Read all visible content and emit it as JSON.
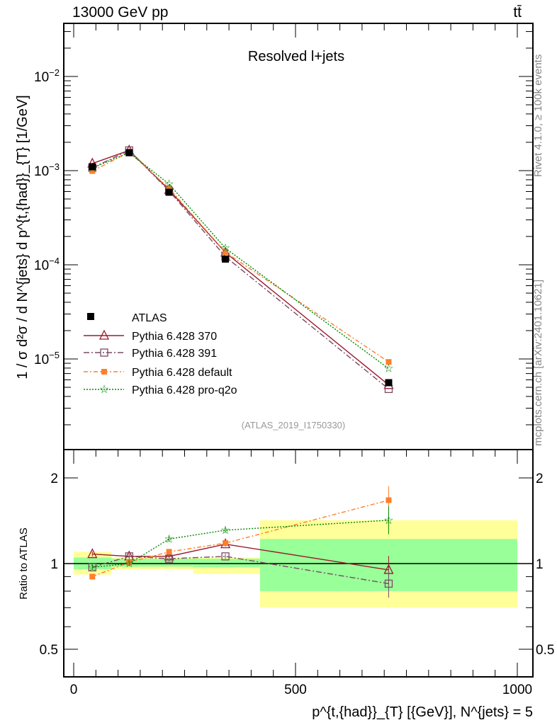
{
  "header": {
    "beam": "13000 GeV pp",
    "process": "tt̄"
  },
  "side": {
    "rivet": "Rivet 4.1.0, ≥ 100k events",
    "source": "mcplots.cern.ch [arXiv:2401.10621]"
  },
  "chart_data": [
    {
      "type": "line",
      "title": "Resolved l+jets",
      "analysis": "(ATLAS_2019_I1750330)",
      "ylabel": "1 / σ d²σ / d N^{jets} d p^{t,{had}}_{T} [1/GeV]",
      "yscale": "log",
      "ylim": [
        3.6e-06,
        0.036
      ],
      "yticks": [
        "10^-2",
        "10^-3",
        "10^-4",
        "10^-5"
      ],
      "x": [
        42,
        125,
        215,
        342,
        710
      ],
      "data": {
        "name": "ATLAS",
        "values": [
          0.0011,
          0.00155,
          0.00059,
          0.000115,
          5.6e-06
        ]
      },
      "series": [
        {
          "name": "Pythia 6.428 370",
          "color": "#9c1a2e",
          "marker": "open-triangle",
          "dash": "",
          "values": [
            0.00119,
            0.00164,
            0.000625,
            0.000135,
            5.3e-06
          ]
        },
        {
          "name": "Pythia 6.428 391",
          "color": "#7a4a66",
          "marker": "open-square",
          "dash": "8 3 2 3",
          "values": [
            0.00107,
            0.00164,
            0.00061,
            0.000122,
            4.8e-06
          ]
        },
        {
          "name": "Pythia 6.428 default",
          "color": "#ff7f2a",
          "marker": "filled-square",
          "dash": "6 3 2 3",
          "values": [
            0.00099,
            0.00157,
            0.00065,
            0.000136,
            9.3e-06
          ]
        },
        {
          "name": "Pythia 6.428 pro-q2o",
          "color": "#008800",
          "marker": "star",
          "dash": "2 2",
          "values": [
            0.00107,
            0.00155,
            0.00072,
            0.00015,
            7.9e-06
          ]
        }
      ],
      "legend": "left-middle"
    },
    {
      "type": "line",
      "ylabel": "Ratio to ATLAS",
      "yscale": "log",
      "ylim": [
        0.4,
        2.5
      ],
      "yticks": [
        "2",
        "1",
        "0.5"
      ],
      "xlabel": "p^{t,{had}}_{T} [{GeV}], N^{jets} = 5",
      "xlim": [
        -10,
        1000
      ],
      "xticks": [
        "0",
        "500",
        "1000"
      ],
      "bins": [
        [
          0,
          85
        ],
        [
          85,
          170
        ],
        [
          170,
          270
        ],
        [
          270,
          420
        ],
        [
          420,
          1000
        ]
      ],
      "band_inner": [
        [
          0.955,
          1.05
        ],
        [
          0.975,
          1.04
        ],
        [
          0.975,
          1.04
        ],
        [
          0.97,
          1.04
        ],
        [
          0.8,
          1.22
        ]
      ],
      "band_outer": [
        [
          0.915,
          1.1
        ],
        [
          0.955,
          1.05
        ],
        [
          0.955,
          1.05
        ],
        [
          0.92,
          1.05
        ],
        [
          0.7,
          1.42
        ]
      ],
      "series": [
        {
          "name": "Pythia 6.428 370",
          "values": [
            1.08,
            1.06,
            1.06,
            1.17,
            0.95
          ]
        },
        {
          "name": "Pythia 6.428 391",
          "values": [
            0.97,
            1.06,
            1.04,
            1.06,
            0.85
          ]
        },
        {
          "name": "Pythia 6.428 default",
          "values": [
            0.9,
            1.01,
            1.1,
            1.18,
            1.67
          ]
        },
        {
          "name": "Pythia 6.428 pro-q2o",
          "values": [
            0.97,
            1.0,
            1.22,
            1.31,
            1.42
          ]
        }
      ]
    }
  ]
}
